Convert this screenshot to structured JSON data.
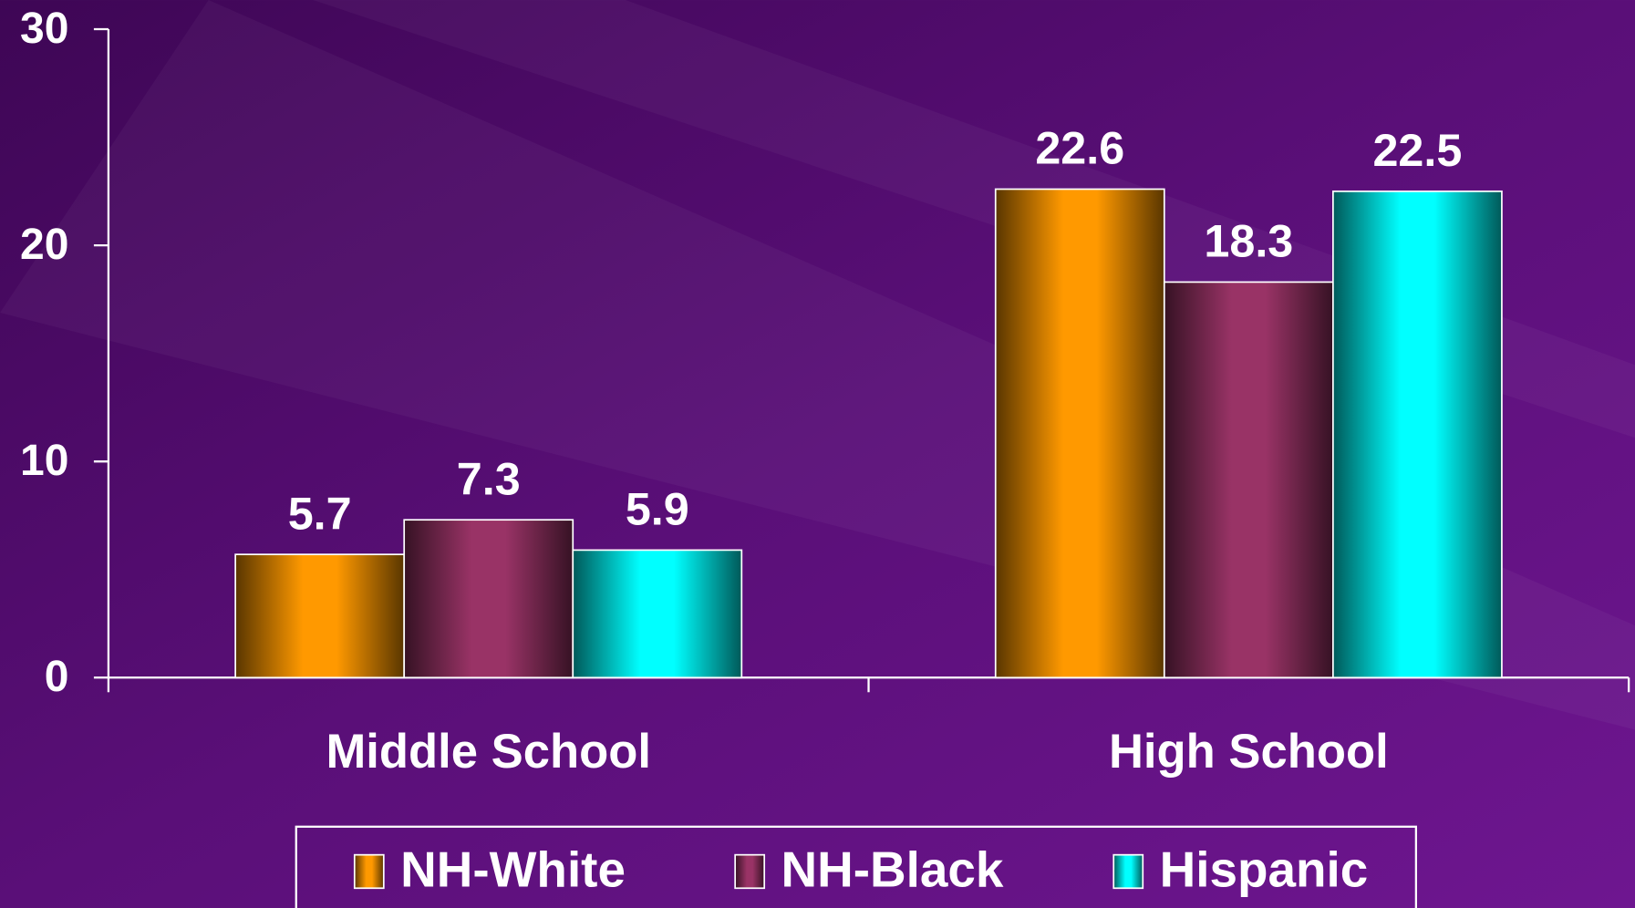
{
  "chart_data": {
    "type": "bar",
    "categories": [
      "Middle School",
      "High School"
    ],
    "series": [
      {
        "name": "NH-White",
        "color": "#ff9900",
        "values": [
          5.7,
          22.6
        ]
      },
      {
        "name": "NH-Black",
        "color": "#993366",
        "values": [
          7.3,
          18.3
        ]
      },
      {
        "name": "Hispanic",
        "color": "#00ffff",
        "values": [
          5.9,
          22.5
        ]
      }
    ],
    "ylim": [
      0,
      30
    ],
    "yticks": [
      0,
      10,
      20,
      30
    ],
    "grid": false,
    "legend": "bottom"
  }
}
